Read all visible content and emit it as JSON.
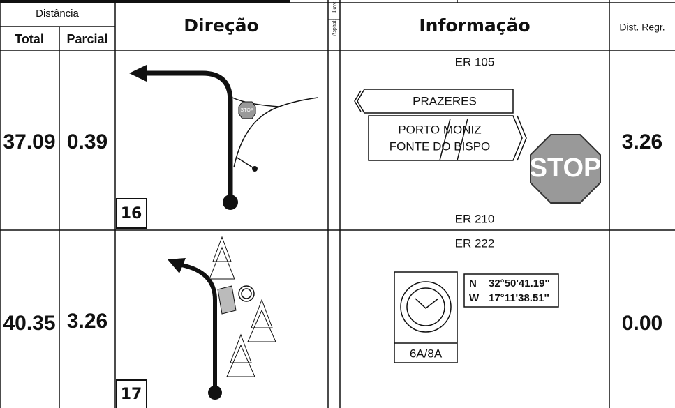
{
  "header": {
    "distance": "Distância",
    "total": "Total",
    "partial": "Parcial",
    "direction": "Direção",
    "surface_asphalt": "Asphalt",
    "surface_pave": "Pavé",
    "information": "Informação",
    "remaining": "Dist. Regr."
  },
  "rows": [
    {
      "total": "37.09",
      "partial": "0.39",
      "number": "16",
      "road_top": "ER 105",
      "road_bottom": "ER 210",
      "signs": [
        "PRAZERES",
        "PORTO MONIZ",
        "FONTE DO BISPO"
      ],
      "stop": "STOP",
      "remaining": "3.26"
    },
    {
      "total": "40.35",
      "partial": "3.26",
      "number": "17",
      "road_top": "ER 222",
      "coords": [
        {
          "dir": "N",
          "value": "32°50'41.19''"
        },
        {
          "dir": "W",
          "value": "17°11'38.51''"
        }
      ],
      "clock_label": "6A/8A",
      "remaining": "0.00"
    }
  ]
}
